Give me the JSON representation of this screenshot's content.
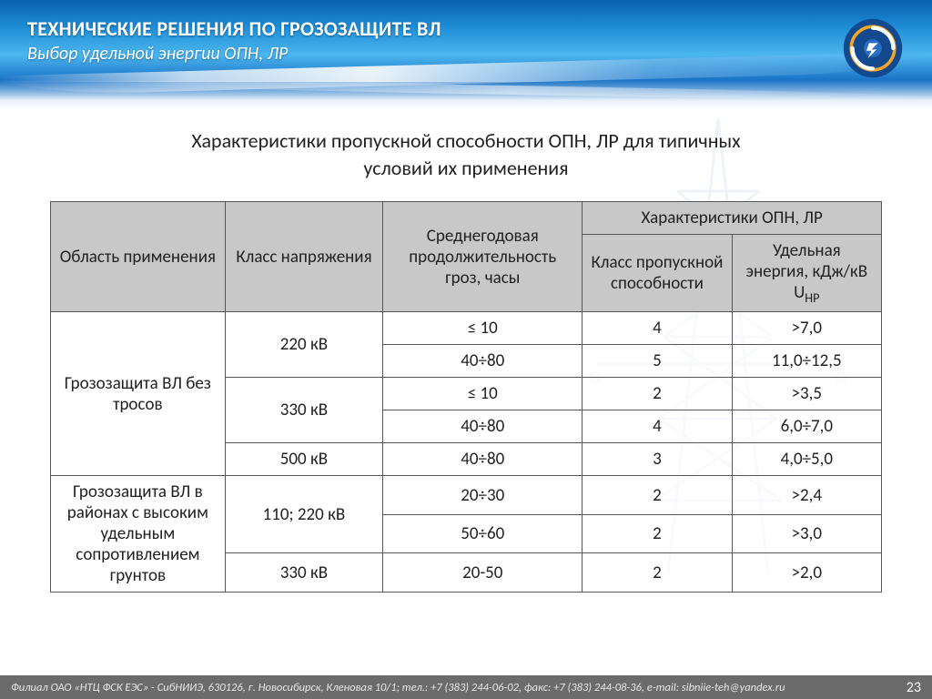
{
  "header": {
    "title_line1": "ТЕХНИЧЕСКИЕ РЕШЕНИЯ ПО ГРОЗОЗАЩИТЕ ВЛ",
    "title_line2": "Выбор удельной энергии ОПН, ЛР"
  },
  "colors": {
    "header_grad_top": "#0a5eb0",
    "header_grad_mid": "#4cb6ee",
    "th_bg": "#c8c8c8",
    "border": "#555555",
    "footer_bg": "#6b6b6b",
    "logo_outer": "#1a5faf",
    "logo_ring": "#f5a623"
  },
  "table": {
    "caption_l1": "Характеристики пропускной способности ОПН, ЛР для типичных",
    "caption_l2": "условий их применения",
    "head": {
      "col1": "Область применения",
      "col2": "Класс напряжения",
      "col3": "Среднегодовая продолжительность гроз, часы",
      "group": "Характеристики ОПН, ЛР",
      "col4": "Класс пропускной способности",
      "col5_a": "Удельная энергия, кДж/кВ U",
      "col5_sub": "НР"
    },
    "rows": [
      {
        "app": "Грозозащита ВЛ без тросов",
        "app_rowspan": 5,
        "volt": "220 кВ",
        "volt_rowspan": 2,
        "hours": "≤ 10",
        "cls": "4",
        "energy": ">7,0"
      },
      {
        "hours": "40÷80",
        "cls": "5",
        "energy": "11,0÷12,5"
      },
      {
        "volt": "330 кВ",
        "volt_rowspan": 2,
        "hours": "≤ 10",
        "cls": "2",
        "energy": ">3,5"
      },
      {
        "hours": "40÷80",
        "cls": "4",
        "energy": "6,0÷7,0"
      },
      {
        "volt": "500 кВ",
        "volt_rowspan": 1,
        "hours": "40÷80",
        "cls": "3",
        "energy": "4,0÷5,0"
      },
      {
        "app": "Грозозащита ВЛ в районах с высоким удельным сопротивлением грунтов",
        "app_rowspan": 3,
        "volt": "110; 220 кВ",
        "volt_rowspan": 2,
        "hours": "20÷30",
        "cls": "2",
        "energy": ">2,4"
      },
      {
        "hours": "50÷60",
        "cls": "2",
        "energy": ">3,0"
      },
      {
        "volt": "330 кВ",
        "volt_rowspan": 1,
        "hours": "20-50",
        "cls": "2",
        "energy": ">2,0"
      }
    ]
  },
  "footer": {
    "text": "Филиал ОАО «НТЦ ФСК ЕЭС» - СибНИИЭ, 630126, г. Новосибирск, Кленовая 10/1;  тел.: +7 (383) 244-06-02, факс: +7 (383) 244-08-36, e-mail: sibniie-teh@yandex.ru",
    "page": "23"
  }
}
